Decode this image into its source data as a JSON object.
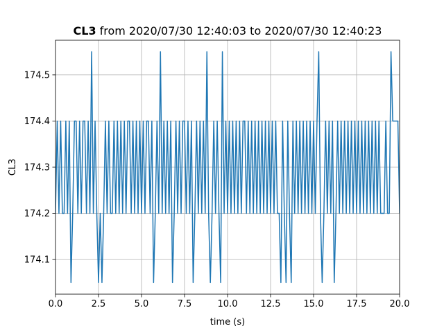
{
  "chart_data": {
    "type": "line",
    "title": {
      "bold": "CL3",
      "rest": "from 2020/07/30 12:40:03 to 2020/07/30 12:40:23"
    },
    "xlabel": "time (s)",
    "ylabel": "CL3",
    "x": [
      0,
      0.1,
      0.2,
      0.3,
      0.4,
      0.5,
      0.6,
      0.7,
      0.8,
      0.9,
      1,
      1.1,
      1.2,
      1.3,
      1.4,
      1.5,
      1.6,
      1.7,
      1.8,
      1.9,
      2,
      2.1,
      2.2,
      2.3,
      2.4,
      2.5,
      2.6,
      2.7,
      2.8,
      2.9,
      3,
      3.1,
      3.2,
      3.3,
      3.4,
      3.5,
      3.6,
      3.7,
      3.8,
      3.9,
      4,
      4.1,
      4.2,
      4.3,
      4.4,
      4.5,
      4.6,
      4.7,
      4.8,
      4.9,
      5,
      5.1,
      5.2,
      5.3,
      5.4,
      5.5,
      5.6,
      5.7,
      5.8,
      5.9,
      6,
      6.1,
      6.2,
      6.3,
      6.4,
      6.5,
      6.6,
      6.7,
      6.8,
      6.9,
      7,
      7.1,
      7.2,
      7.3,
      7.4,
      7.5,
      7.6,
      7.7,
      7.8,
      7.9,
      8,
      8.1,
      8.2,
      8.3,
      8.4,
      8.5,
      8.6,
      8.7,
      8.8,
      8.9,
      9,
      9.1,
      9.2,
      9.3,
      9.4,
      9.5,
      9.6,
      9.7,
      9.8,
      9.9,
      10,
      10.1,
      10.2,
      10.3,
      10.4,
      10.5,
      10.6,
      10.7,
      10.8,
      10.9,
      11,
      11.1,
      11.2,
      11.3,
      11.4,
      11.5,
      11.6,
      11.7,
      11.8,
      11.9,
      12,
      12.1,
      12.2,
      12.3,
      12.4,
      12.5,
      12.6,
      12.7,
      12.8,
      12.9,
      13,
      13.1,
      13.2,
      13.3,
      13.4,
      13.5,
      13.6,
      13.7,
      13.8,
      13.9,
      14,
      14.1,
      14.2,
      14.3,
      14.4,
      14.5,
      14.6,
      14.7,
      14.8,
      14.9,
      15,
      15.1,
      15.2,
      15.3,
      15.4,
      15.5,
      15.6,
      15.7,
      15.8,
      15.9,
      16,
      16.1,
      16.2,
      16.3,
      16.4,
      16.5,
      16.6,
      16.7,
      16.8,
      16.9,
      17,
      17.1,
      17.2,
      17.3,
      17.4,
      17.5,
      17.6,
      17.7,
      17.8,
      17.9,
      18,
      18.1,
      18.2,
      18.3,
      18.4,
      18.5,
      18.6,
      18.7,
      18.8,
      18.9,
      19,
      19.1,
      19.2,
      19.3,
      19.4,
      19.5,
      19.6,
      19.7,
      19.8,
      19.9,
      20
    ],
    "series": [
      {
        "name": "CL3",
        "color": "#1f77b4",
        "values": [
          174.2,
          174.4,
          174.2,
          174.4,
          174.2,
          174.2,
          174.4,
          174.2,
          174.4,
          174.05,
          174.2,
          174.4,
          174.4,
          174.2,
          174.4,
          174.2,
          174.4,
          174.4,
          174.2,
          174.4,
          174.2,
          174.55,
          174.2,
          174.4,
          174.2,
          174.05,
          174.2,
          174.05,
          174.2,
          174.4,
          174.2,
          174.4,
          174.2,
          174.2,
          174.4,
          174.2,
          174.4,
          174.2,
          174.4,
          174.2,
          174.4,
          174.2,
          174.4,
          174.4,
          174.2,
          174.4,
          174.2,
          174.4,
          174.2,
          174.4,
          174.2,
          174.4,
          174.2,
          174.4,
          174.4,
          174.2,
          174.4,
          174.05,
          174.2,
          174.4,
          174.2,
          174.55,
          174.2,
          174.4,
          174.2,
          174.4,
          174.2,
          174.4,
          174.05,
          174.2,
          174.4,
          174.2,
          174.4,
          174.2,
          174.4,
          174.4,
          174.2,
          174.4,
          174.2,
          174.4,
          174.05,
          174.2,
          174.4,
          174.2,
          174.4,
          174.2,
          174.4,
          174.2,
          174.55,
          174.2,
          174.05,
          174.2,
          174.4,
          174.2,
          174.4,
          174.2,
          174.05,
          174.55,
          174.2,
          174.4,
          174.2,
          174.4,
          174.2,
          174.4,
          174.2,
          174.4,
          174.2,
          174.4,
          174.2,
          174.4,
          174.4,
          174.2,
          174.4,
          174.2,
          174.4,
          174.2,
          174.4,
          174.2,
          174.4,
          174.2,
          174.4,
          174.2,
          174.4,
          174.2,
          174.4,
          174.2,
          174.4,
          174.2,
          174.4,
          174.2,
          174.2,
          174.05,
          174.4,
          174.2,
          174.05,
          174.4,
          174.2,
          174.05,
          174.4,
          174.2,
          174.4,
          174.2,
          174.4,
          174.2,
          174.4,
          174.2,
          174.4,
          174.2,
          174.4,
          174.2,
          174.4,
          174.2,
          174.4,
          174.55,
          174.2,
          174.05,
          174.2,
          174.4,
          174.2,
          174.4,
          174.2,
          174.4,
          174.05,
          174.2,
          174.4,
          174.2,
          174.4,
          174.2,
          174.4,
          174.2,
          174.4,
          174.2,
          174.4,
          174.2,
          174.4,
          174.2,
          174.4,
          174.2,
          174.4,
          174.2,
          174.4,
          174.2,
          174.4,
          174.2,
          174.4,
          174.2,
          174.4,
          174.2,
          174.4,
          174.2,
          174.2,
          174.2,
          174.4,
          174.2,
          174.2,
          174.55,
          174.4,
          174.4,
          174.4,
          174.4,
          174.2
        ]
      }
    ],
    "xlim": [
      0,
      20
    ],
    "xticks": [
      {
        "value": 0,
        "label": "0.0"
      },
      2.5,
      {
        "value": 5,
        "label": "5.0"
      },
      7.5,
      {
        "value": 10,
        "label": "10.0"
      },
      12.5,
      {
        "value": 15,
        "label": "15.0"
      },
      17.5,
      {
        "value": 20,
        "label": "20.0"
      }
    ],
    "ylim": [
      174.025,
      174.575
    ],
    "yticks": [
      174.1,
      174.2,
      174.3,
      174.4,
      174.5
    ],
    "grid": true
  }
}
